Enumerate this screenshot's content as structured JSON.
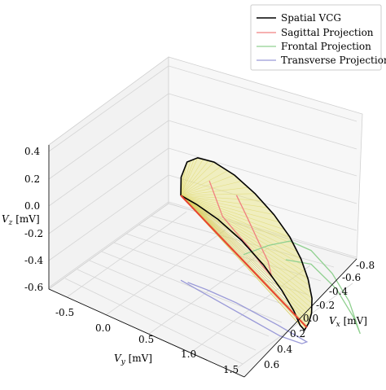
{
  "chart_data": {
    "type": "line",
    "title": "",
    "projection": "3d",
    "axes": {
      "x": {
        "label": "V_x [mV]",
        "label_main": "V",
        "label_sub": "x",
        "label_unit": " [mV]",
        "range": [
          -0.85,
          0.65
        ],
        "ticks": [
          -0.8,
          -0.6,
          -0.4,
          -0.2,
          0.0,
          0.2,
          0.4,
          0.6
        ],
        "tick_labels": [
          "-0.8",
          "-0.6",
          "-0.4",
          "-0.2",
          "0.0",
          "0.2",
          "0.4",
          "0.6"
        ]
      },
      "y": {
        "label": "V_y [mV]",
        "label_main": "V",
        "label_sub": "y",
        "label_unit": " [mV]",
        "range": [
          -0.7,
          1.6
        ],
        "ticks": [
          -0.5,
          0.0,
          0.5,
          1.0,
          1.5
        ],
        "tick_labels": [
          "-0.5",
          "0.0",
          "0.5",
          "1.0",
          "1.5"
        ]
      },
      "z": {
        "label": "V_z [mV]",
        "label_main": "V",
        "label_sub": "z",
        "label_unit": " [mV]",
        "range": [
          -0.65,
          0.45
        ],
        "ticks": [
          -0.6,
          -0.4,
          -0.2,
          0.0,
          0.2,
          0.4
        ],
        "tick_labels": [
          "-0.6",
          "-0.4",
          "-0.2",
          "0.0",
          "0.2",
          "0.4"
        ]
      }
    },
    "grid": true,
    "legend": {
      "placement": "top-right"
    },
    "series": [
      {
        "name": "Spatial VCG",
        "color": "#000000",
        "points": [
          [
            0.0,
            0.0,
            0.0
          ],
          [
            0.05,
            0.05,
            0.12
          ],
          [
            0.05,
            0.12,
            0.25
          ],
          [
            0.0,
            0.2,
            0.33
          ],
          [
            -0.1,
            0.3,
            0.38
          ],
          [
            -0.2,
            0.45,
            0.38
          ],
          [
            -0.3,
            0.6,
            0.34
          ],
          [
            -0.38,
            0.75,
            0.27
          ],
          [
            -0.42,
            0.9,
            0.17
          ],
          [
            -0.4,
            1.05,
            0.04
          ],
          [
            -0.35,
            1.18,
            -0.1
          ],
          [
            -0.27,
            1.3,
            -0.25
          ],
          [
            -0.2,
            1.36,
            -0.38
          ],
          [
            -0.14,
            1.38,
            -0.48
          ],
          [
            -0.12,
            1.35,
            -0.55
          ],
          [
            -0.15,
            1.27,
            -0.52
          ],
          [
            -0.2,
            1.15,
            -0.42
          ],
          [
            -0.23,
            0.98,
            -0.3
          ],
          [
            -0.22,
            0.78,
            -0.18
          ],
          [
            -0.18,
            0.55,
            -0.08
          ],
          [
            -0.12,
            0.33,
            -0.02
          ],
          [
            -0.05,
            0.14,
            0.0
          ],
          [
            0.0,
            0.0,
            0.0
          ]
        ]
      },
      {
        "name": "Sagittal Projection",
        "color": "#f08080",
        "points": [
          [
            -0.55,
            0.15,
            0.34
          ],
          [
            -0.58,
            0.25,
            0.22
          ],
          [
            -0.6,
            0.35,
            0.1
          ],
          [
            -0.63,
            0.45,
            -0.02
          ],
          [
            -0.62,
            0.5,
            -0.12
          ],
          [
            -0.58,
            0.42,
            -0.08
          ],
          [
            -0.55,
            0.3,
            0.0
          ],
          [
            -0.5,
            0.15,
            0.07
          ],
          [
            -0.48,
            0.05,
            0.12
          ],
          [
            -0.45,
            0.0,
            0.22
          ],
          [
            -0.42,
            -0.05,
            0.32
          ]
        ]
      },
      {
        "name": "Frontal Projection",
        "color": "#90d090",
        "points": [
          [
            -0.8,
            0.0,
            0.0
          ],
          [
            -0.8,
            0.3,
            0.15
          ],
          [
            -0.8,
            0.55,
            0.25
          ],
          [
            -0.8,
            0.8,
            0.25
          ],
          [
            -0.8,
            1.05,
            0.15
          ],
          [
            -0.8,
            1.25,
            0.0
          ],
          [
            -0.8,
            1.38,
            -0.2
          ],
          [
            -0.8,
            1.3,
            -0.1
          ],
          [
            -0.8,
            1.1,
            0.05
          ],
          [
            -0.8,
            0.8,
            0.15
          ],
          [
            -0.8,
            0.5,
            0.1
          ]
        ]
      },
      {
        "name": "Transverse Projection",
        "color": "#9a9ad8",
        "points": [
          [
            0.0,
            0.0,
            -0.62
          ],
          [
            -0.1,
            0.3,
            -0.62
          ],
          [
            -0.2,
            0.6,
            -0.62
          ],
          [
            -0.3,
            0.9,
            -0.62
          ],
          [
            -0.25,
            1.2,
            -0.62
          ],
          [
            -0.15,
            1.35,
            -0.62
          ],
          [
            -0.05,
            1.1,
            -0.62
          ],
          [
            0.05,
            0.7,
            -0.62
          ],
          [
            0.05,
            0.35,
            -0.62
          ],
          [
            0.02,
            0.1,
            -0.62
          ]
        ]
      }
    ],
    "annotation": {
      "type": "vector",
      "color": "#e8432f",
      "from": [
        0.0,
        0.0,
        0.0
      ],
      "to": [
        -0.13,
        1.37,
        -0.52
      ]
    },
    "fill": {
      "color": "#e6e27a",
      "description": ""
    }
  }
}
